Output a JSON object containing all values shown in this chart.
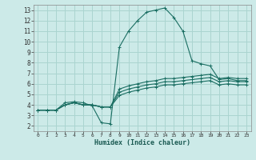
{
  "xlabel": "Humidex (Indice chaleur)",
  "ylabel": "",
  "bg_color": "#cceae8",
  "grid_color": "#aad4d0",
  "line_color": "#1a6e62",
  "xlim": [
    -0.5,
    23.5
  ],
  "ylim": [
    1.5,
    13.5
  ],
  "xticks": [
    0,
    1,
    2,
    3,
    4,
    5,
    6,
    7,
    8,
    9,
    10,
    11,
    12,
    13,
    14,
    15,
    16,
    17,
    18,
    19,
    20,
    21,
    22,
    23
  ],
  "yticks": [
    2,
    3,
    4,
    5,
    6,
    7,
    8,
    9,
    10,
    11,
    12,
    13
  ],
  "series": [
    [
      3.5,
      3.5,
      3.5,
      4.2,
      4.3,
      4.2,
      3.9,
      2.3,
      2.2,
      9.5,
      11.0,
      12.0,
      12.8,
      13.0,
      13.2,
      12.3,
      11.0,
      8.2,
      7.9,
      7.7,
      6.4,
      6.5,
      6.3,
      6.3
    ],
    [
      3.5,
      3.5,
      3.5,
      4.0,
      4.2,
      4.0,
      4.0,
      3.8,
      3.8,
      5.5,
      5.8,
      6.0,
      6.2,
      6.3,
      6.5,
      6.5,
      6.6,
      6.7,
      6.8,
      6.9,
      6.5,
      6.6,
      6.5,
      6.5
    ],
    [
      3.5,
      3.5,
      3.5,
      4.0,
      4.2,
      4.0,
      4.0,
      3.8,
      3.8,
      5.2,
      5.5,
      5.7,
      5.9,
      6.0,
      6.2,
      6.2,
      6.3,
      6.4,
      6.5,
      6.6,
      6.2,
      6.3,
      6.2,
      6.2
    ],
    [
      3.5,
      3.5,
      3.5,
      4.0,
      4.2,
      4.0,
      4.0,
      3.8,
      3.8,
      4.9,
      5.2,
      5.4,
      5.6,
      5.7,
      5.9,
      5.9,
      6.0,
      6.1,
      6.2,
      6.3,
      5.9,
      6.0,
      5.9,
      5.9
    ]
  ]
}
